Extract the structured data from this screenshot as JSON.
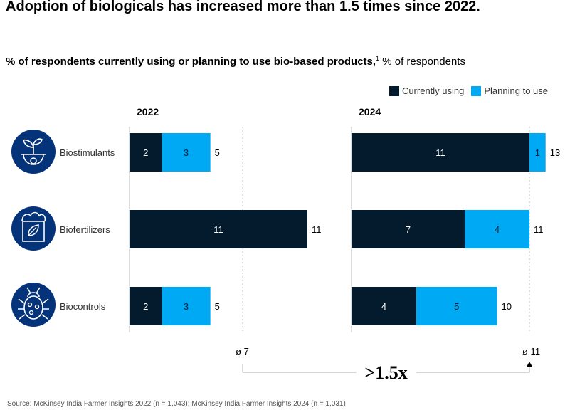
{
  "title": "Adoption of biologicals  has increased more than 1.5 times since 2022.",
  "subtitle": {
    "bold": "% of respondents currently using or planning to use bio-based products,",
    "footnote_mark": "1",
    "rest": " % of respondents"
  },
  "legend": [
    {
      "label": "Currently using",
      "color": "#031b2d"
    },
    {
      "label": "Planning to use",
      "color": "#00a9f4"
    }
  ],
  "source": "Source: McKinsey India Farmer Insights 2022 (n = 1,043); McKinsey India Farmer Insights 2024 (n = 1,031)",
  "chart_data": {
    "type": "bar",
    "orientation": "horizontal",
    "stacked": true,
    "title": "Adoption of biologicals  has increased more than 1.5 times since 2022.",
    "categories": [
      "Biostimulants",
      "Biofertilizers",
      "Biocontrols"
    ],
    "category_icons": [
      "seedling-icon",
      "fertilizer-bag-icon",
      "beetle-icon"
    ],
    "panels": [
      {
        "year": "2022",
        "series": [
          {
            "name": "Currently using",
            "values": [
              2,
              11,
              2
            ]
          },
          {
            "name": "Planning to use",
            "values": [
              3,
              0,
              3
            ]
          }
        ],
        "totals": [
          5,
          11,
          5
        ],
        "average_label": "ø 7",
        "average_value": 7
      },
      {
        "year": "2024",
        "series": [
          {
            "name": "Currently using",
            "values": [
              11,
              7,
              4
            ]
          },
          {
            "name": "Planning to use",
            "values": [
              1,
              4,
              5
            ]
          }
        ],
        "totals": [
          13,
          11,
          10
        ],
        "average_label": "ø 11",
        "average_value": 11
      }
    ],
    "annotation": ">1.5x",
    "xlim": [
      0,
      13.3
    ],
    "legend_position": "top-right",
    "grid": false
  }
}
